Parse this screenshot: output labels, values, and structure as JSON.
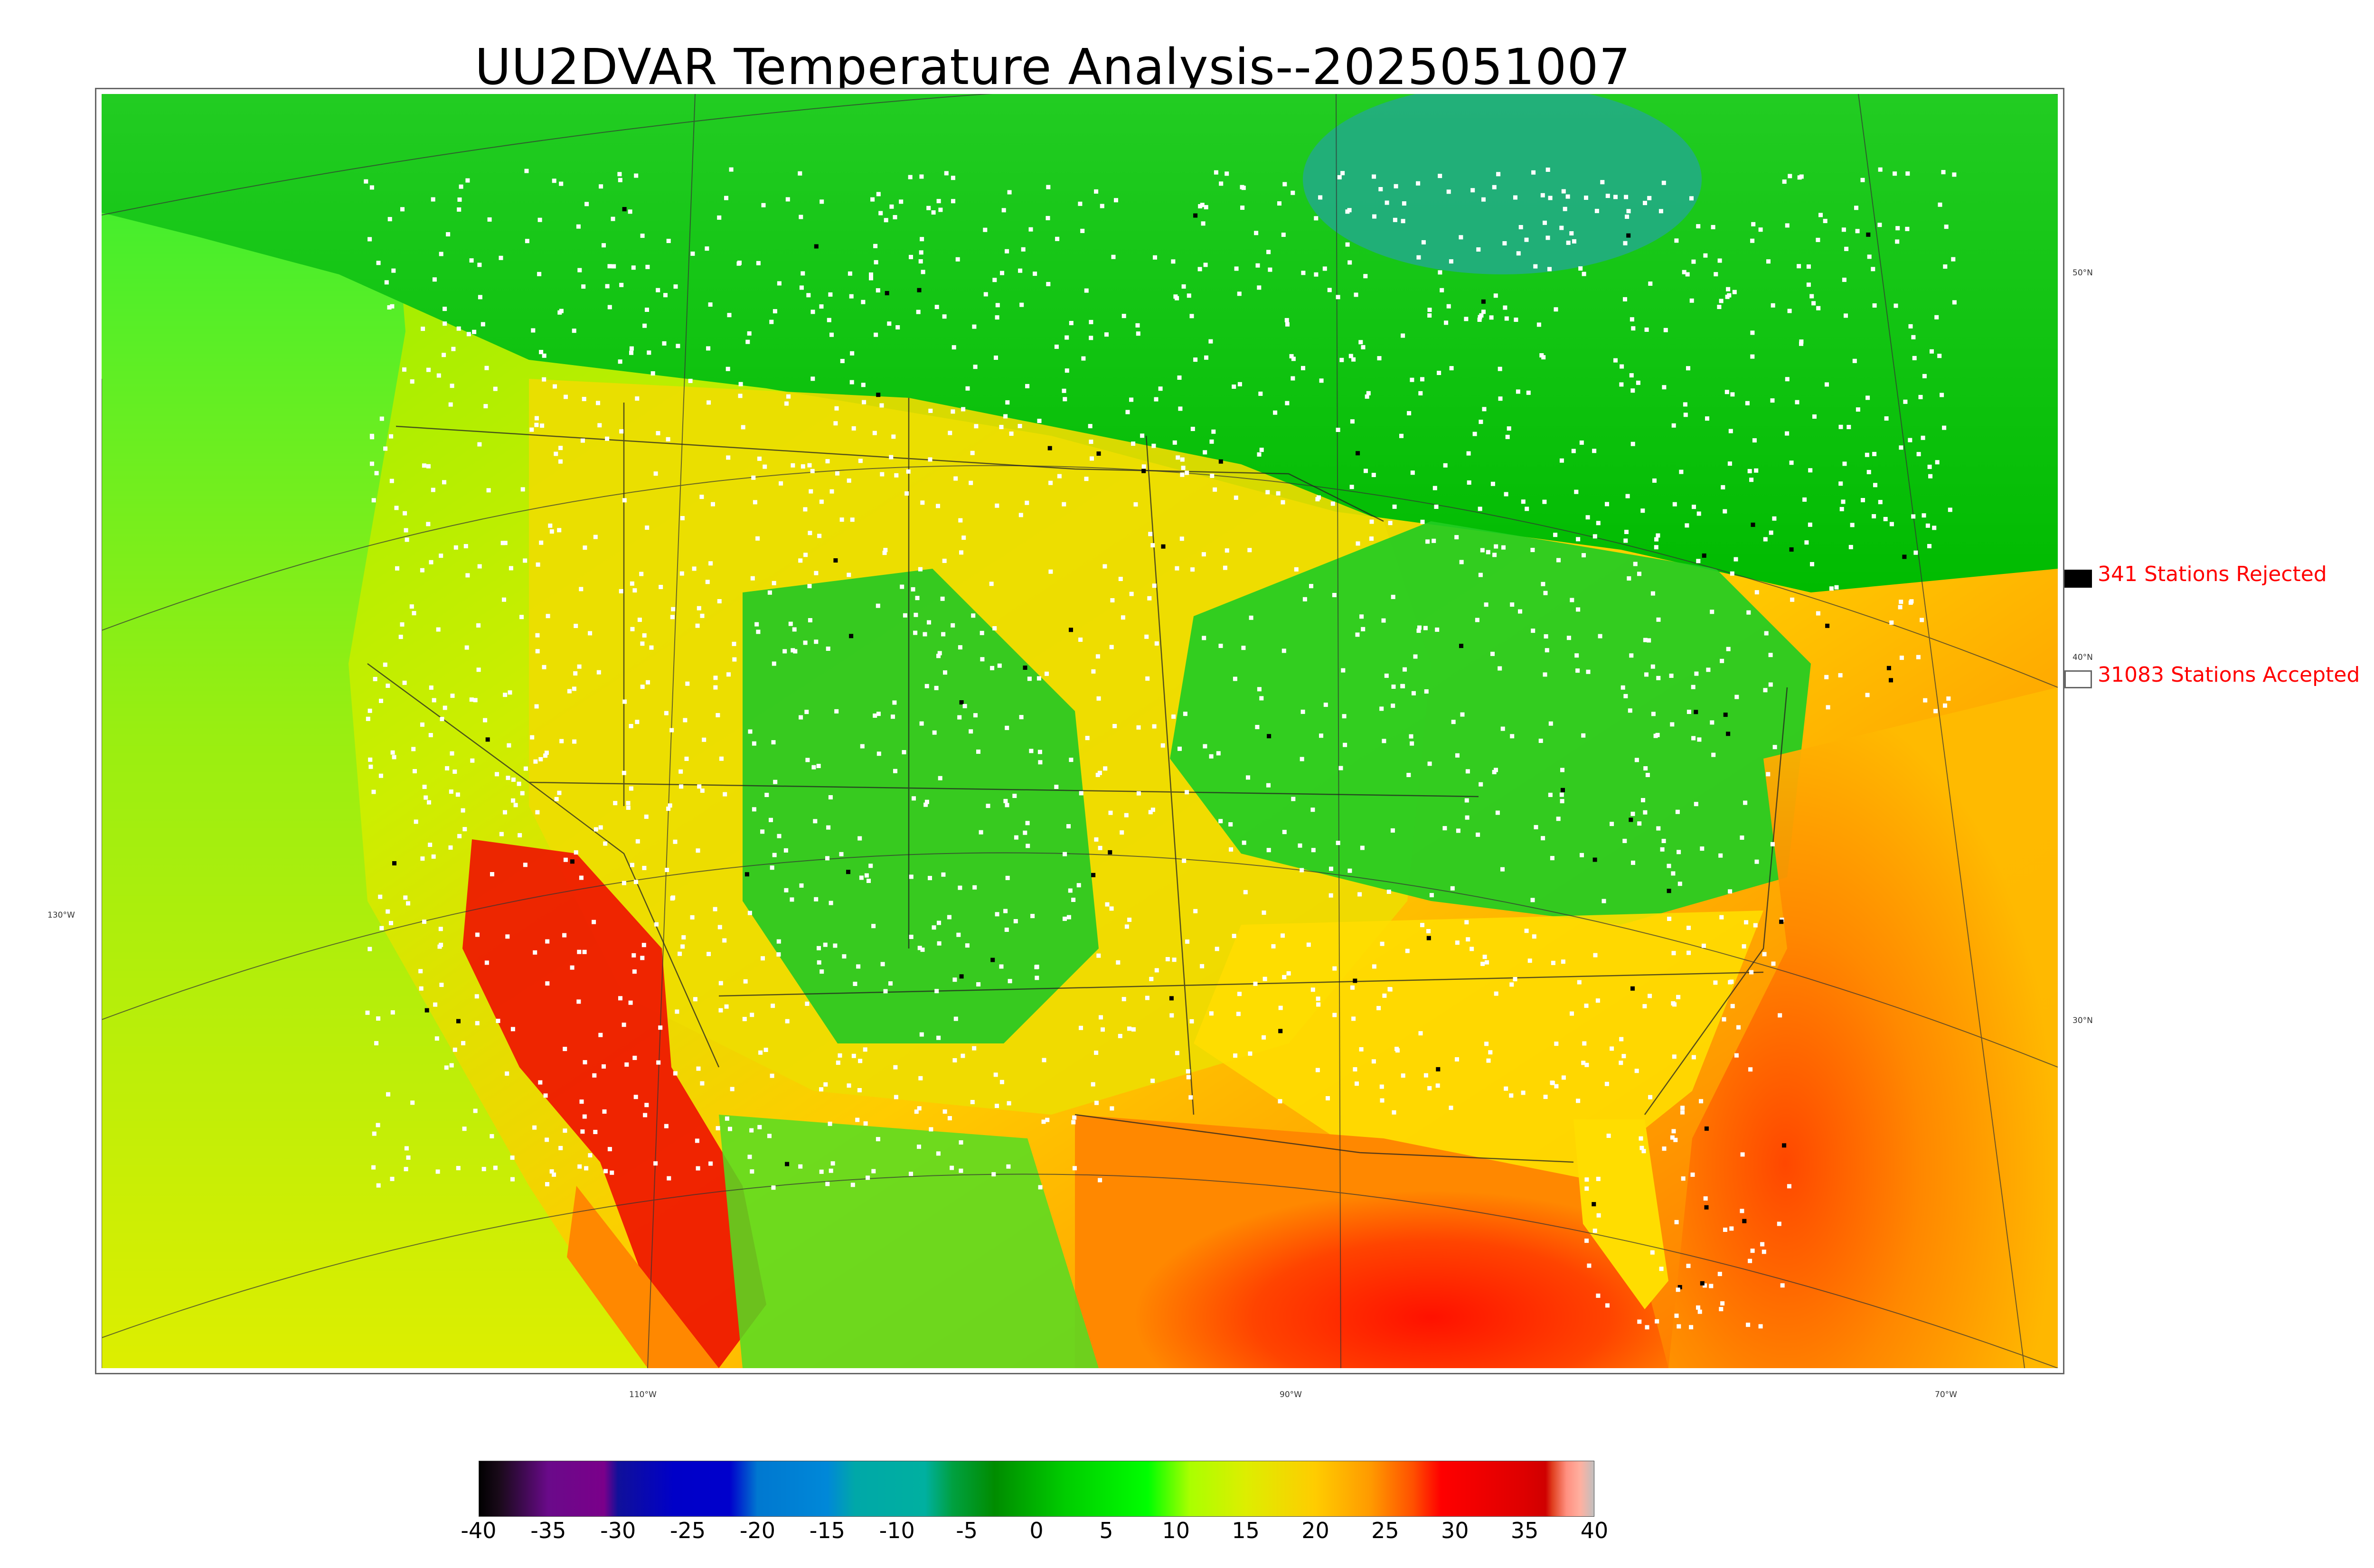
{
  "title": "UU2DVAR Temperature Analysis--2025051007",
  "lat_labels": [
    "50°N",
    "40°N",
    "30°N"
  ],
  "lon_labels": [
    "130°W",
    "110°W",
    "90°W",
    "70°W"
  ],
  "legend": {
    "rejected": {
      "label": "341 Stations Rejected",
      "color": "#000000"
    },
    "accepted": {
      "label": "31083 Stations Accepted",
      "color": "#ffffff"
    },
    "text_color": "#ff0000"
  },
  "colorbar": {
    "ticks": [
      "-40",
      "-35",
      "-30",
      "-25",
      "-20",
      "-15",
      "-10",
      "-5",
      "0",
      "5",
      "10",
      "15",
      "20",
      "25",
      "30",
      "35",
      "40"
    ],
    "range": [
      -40,
      40
    ],
    "colors": [
      {
        "v": -40,
        "c": "#000000"
      },
      {
        "v": -38.5,
        "c": "#1a0a1a"
      },
      {
        "v": -37,
        "c": "#3a0a4a"
      },
      {
        "v": -35,
        "c": "#6a0a8a"
      },
      {
        "v": -31,
        "c": "#7a008a"
      },
      {
        "v": -30,
        "c": "#10109a"
      },
      {
        "v": -26,
        "c": "#0000c8"
      },
      {
        "v": -22,
        "c": "#0000cc"
      },
      {
        "v": -20,
        "c": "#0078d0"
      },
      {
        "v": -15,
        "c": "#0088d8"
      },
      {
        "v": -13,
        "c": "#00a8a8"
      },
      {
        "v": -8,
        "c": "#00b0a0"
      },
      {
        "v": -6,
        "c": "#00a040"
      },
      {
        "v": -3,
        "c": "#008c00"
      },
      {
        "v": 2,
        "c": "#00cc00"
      },
      {
        "v": 8,
        "c": "#00ff00"
      },
      {
        "v": 11,
        "c": "#aaff00"
      },
      {
        "v": 15,
        "c": "#ddee00"
      },
      {
        "v": 20,
        "c": "#ffcc00"
      },
      {
        "v": 24,
        "c": "#ff9900"
      },
      {
        "v": 27,
        "c": "#ff5000"
      },
      {
        "v": 29,
        "c": "#ff0000"
      },
      {
        "v": 32,
        "c": "#ee0000"
      },
      {
        "v": 35,
        "c": "#dd0000"
      },
      {
        "v": 36.5,
        "c": "#d00000"
      },
      {
        "v": 37,
        "c": "#e04020"
      },
      {
        "v": 38,
        "c": "#ff9080"
      },
      {
        "v": 39,
        "c": "#ffb0a0"
      },
      {
        "v": 40,
        "c": "#c0c0c0"
      }
    ]
  },
  "colors": {
    "cool_green": "#22cc22",
    "warm_yellow": "#eedd00",
    "hot_red": "#ee1100",
    "ocean_orange": "#ff8800",
    "cold_teal": "#22aa88"
  }
}
